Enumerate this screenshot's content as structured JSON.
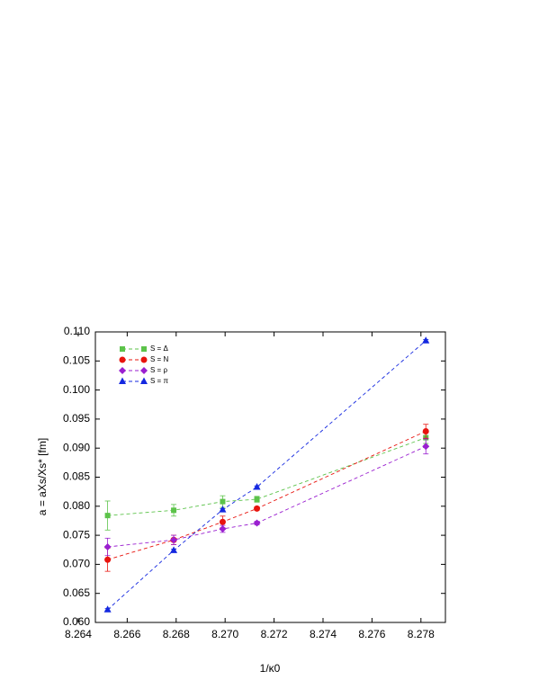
{
  "chart_data": {
    "type": "line",
    "xlabel": "1/κ0",
    "ylabel": "a = aXs/Xs* [fm]",
    "xlim": [
      8.2647,
      8.279
    ],
    "ylim": [
      0.06,
      0.11
    ],
    "xticks": [
      8.264,
      8.266,
      8.268,
      {
        "value": 8.27,
        "label": "8.270"
      },
      8.272,
      8.274,
      8.276,
      8.278
    ],
    "yticks": [
      {
        "value": 0.06,
        "label": "0.060"
      },
      0.065,
      {
        "value": 0.07,
        "label": "0.070"
      },
      0.075,
      {
        "value": 0.08,
        "label": "0.080"
      },
      0.085,
      {
        "value": 0.09,
        "label": "0.090"
      },
      0.095,
      {
        "value": 0.1,
        "label": "0.100"
      },
      0.105,
      {
        "value": 0.11,
        "label": "0.110"
      }
    ],
    "x": [
      8.2652,
      8.2679,
      8.2699,
      8.2713,
      8.2782
    ],
    "legend": "upper left",
    "series": [
      {
        "name": "S = Δ",
        "color": "#5cc34a",
        "marker": "square",
        "values": [
          0.0784,
          0.0793,
          0.0808,
          0.0812,
          0.0918
        ],
        "errors": [
          0.0025,
          0.001,
          0.001,
          0.0005,
          0.001
        ]
      },
      {
        "name": "S = N",
        "color": "#e8140e",
        "marker": "circle",
        "values": [
          0.0708,
          0.0742,
          0.0773,
          0.0796,
          0.0929
        ],
        "errors": [
          0.002,
          0.0008,
          0.001,
          0.0003,
          0.0012
        ]
      },
      {
        "name": "S = ρ",
        "color": "#9a1fd0",
        "marker": "diamond",
        "values": [
          0.073,
          0.0742,
          0.0761,
          0.0771,
          0.0903
        ],
        "errors": [
          0.0015,
          0.0008,
          0.0006,
          0.0003,
          0.0013
        ]
      },
      {
        "name": "S = π",
        "color": "#1428e0",
        "marker": "triangle",
        "values": [
          0.0622,
          0.0724,
          0.0794,
          0.0833,
          0.1085
        ],
        "errors": [
          0.0002,
          0.0002,
          0.0002,
          0.0002,
          0.0002
        ]
      }
    ]
  }
}
